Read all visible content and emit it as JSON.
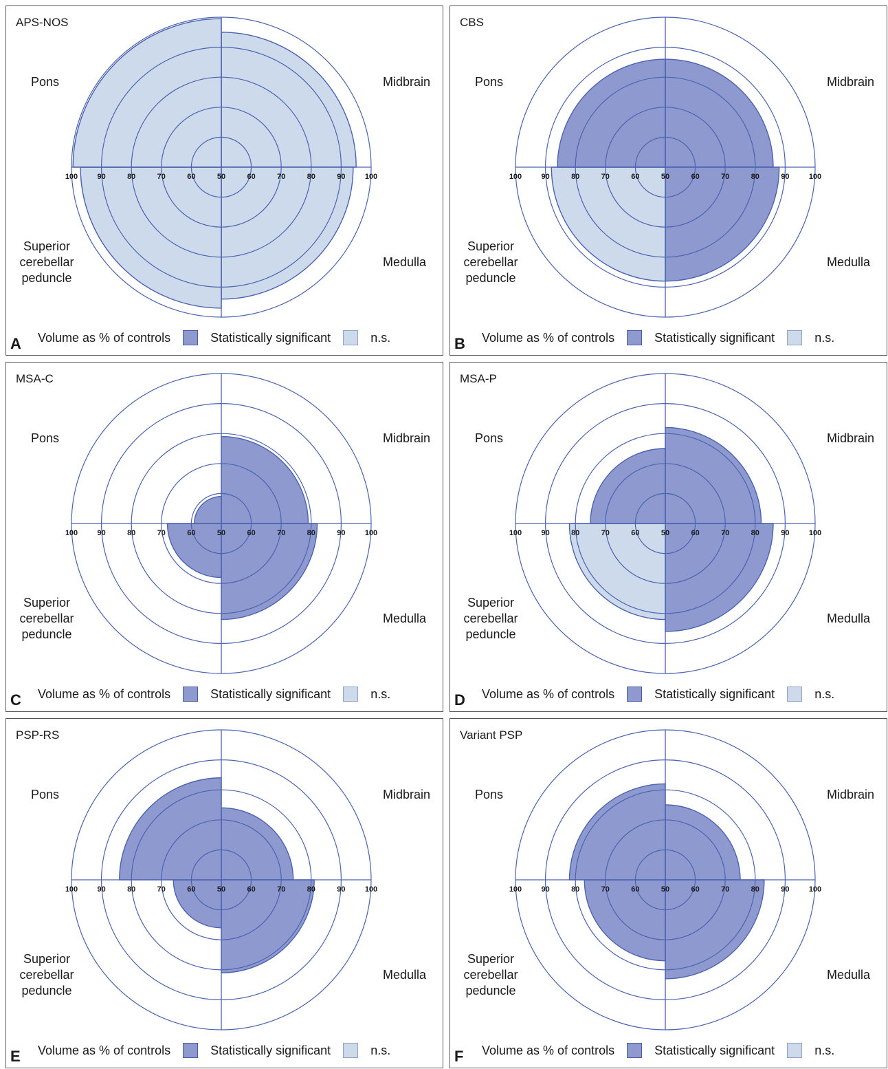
{
  "quadrants": {
    "pons": "Pons",
    "midbrain": "Midbrain",
    "scp": "Superior\ncerebellar\npeduncle",
    "medulla": "Medulla"
  },
  "legend": {
    "title": "Volume as % of controls",
    "significant": "Statistically significant",
    "ns": "n.s."
  },
  "colors": {
    "significant": "#8e9acf",
    "ns": "#cddaeb",
    "line": "#4a62b0"
  },
  "chart_data": [
    {
      "type": "polar-area",
      "title": "APS-NOS",
      "panel": "A",
      "rlim": [
        50,
        100
      ],
      "rings": [
        60,
        70,
        80,
        90,
        100
      ],
      "tick_labels": [
        "100",
        "90",
        "80",
        "70",
        "60",
        "50",
        "60",
        "70",
        "80",
        "90",
        "100"
      ],
      "values": {
        "midbrain": 95,
        "medulla": 94,
        "scp": 97,
        "pons": 99.5
      },
      "significant": {
        "midbrain": false,
        "medulla": false,
        "scp": false,
        "pons": false
      }
    },
    {
      "type": "polar-area",
      "title": "CBS",
      "panel": "B",
      "rlim": [
        50,
        100
      ],
      "rings": [
        60,
        70,
        80,
        90,
        100
      ],
      "tick_labels": [
        "100",
        "90",
        "80",
        "70",
        "60",
        "50",
        "60",
        "70",
        "80",
        "90",
        "100"
      ],
      "values": {
        "midbrain": 86,
        "medulla": 88,
        "scp": 88,
        "pons": 86
      },
      "significant": {
        "midbrain": true,
        "medulla": true,
        "scp": false,
        "pons": true
      }
    },
    {
      "type": "polar-area",
      "title": "MSA-C",
      "panel": "C",
      "rlim": [
        50,
        100
      ],
      "rings": [
        60,
        70,
        80,
        90,
        100
      ],
      "tick_labels": [
        "100",
        "90",
        "80",
        "70",
        "60",
        "50",
        "60",
        "70",
        "80",
        "90",
        "100"
      ],
      "values": {
        "midbrain": 79,
        "medulla": 82,
        "scp": 68,
        "pons": 59
      },
      "significant": {
        "midbrain": true,
        "medulla": true,
        "scp": true,
        "pons": true
      }
    },
    {
      "type": "polar-area",
      "title": "MSA-P",
      "panel": "D",
      "rlim": [
        50,
        100
      ],
      "rings": [
        60,
        70,
        80,
        90,
        100
      ],
      "tick_labels": [
        "100",
        "90",
        "80",
        "70",
        "60",
        "50",
        "60",
        "70",
        "80",
        "90",
        "100"
      ],
      "values": {
        "midbrain": 82,
        "medulla": 86,
        "scp": 82,
        "pons": 75
      },
      "significant": {
        "midbrain": true,
        "medulla": true,
        "scp": false,
        "pons": true
      }
    },
    {
      "type": "polar-area",
      "title": "PSP-RS",
      "panel": "E",
      "rlim": [
        50,
        100
      ],
      "rings": [
        60,
        70,
        80,
        90,
        100
      ],
      "tick_labels": [
        "100",
        "90",
        "80",
        "70",
        "60",
        "50",
        "60",
        "70",
        "80",
        "90",
        "100"
      ],
      "values": {
        "midbrain": 74,
        "medulla": 81,
        "scp": 66,
        "pons": 84
      },
      "significant": {
        "midbrain": true,
        "medulla": true,
        "scp": true,
        "pons": true
      }
    },
    {
      "type": "polar-area",
      "title": "Variant PSP",
      "panel": "F",
      "rlim": [
        50,
        100
      ],
      "rings": [
        60,
        70,
        80,
        90,
        100
      ],
      "tick_labels": [
        "100",
        "90",
        "80",
        "70",
        "60",
        "50",
        "60",
        "70",
        "80",
        "90",
        "100"
      ],
      "values": {
        "midbrain": 75,
        "medulla": 83,
        "scp": 77,
        "pons": 82
      },
      "significant": {
        "midbrain": true,
        "medulla": true,
        "scp": true,
        "pons": true
      }
    }
  ]
}
